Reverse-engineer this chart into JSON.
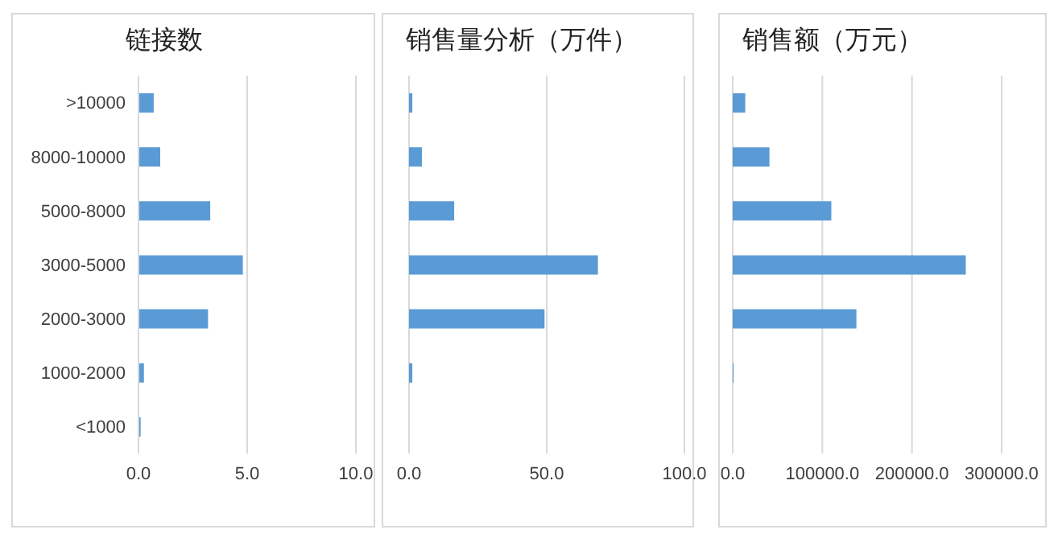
{
  "chart_data": [
    {
      "type": "bar",
      "orientation": "horizontal",
      "title": "链接数",
      "categories": [
        ">10000",
        "8000-10000",
        "5000-8000",
        "3000-5000",
        "2000-3000",
        "1000-2000",
        "<1000"
      ],
      "values": [
        0.7,
        1.0,
        3.3,
        4.8,
        3.2,
        0.25,
        0.1
      ],
      "color": "#5b9bd5",
      "xlim": [
        0,
        10
      ],
      "xticks": [
        {
          "value": 0,
          "label": "0.0"
        },
        {
          "value": 5,
          "label": "5.0"
        },
        {
          "value": 10,
          "label": "10.0"
        }
      ],
      "grid": "x"
    },
    {
      "type": "bar",
      "orientation": "horizontal",
      "title": "销售量分析（万件）",
      "categories": [
        null,
        null,
        null,
        null,
        null,
        null,
        null
      ],
      "values": [
        1.2,
        4.7,
        16.4,
        68.6,
        49.2,
        1.2,
        0
      ],
      "color": "#5b9bd5",
      "xlim": [
        0,
        100
      ],
      "xticks": [
        {
          "value": 0,
          "label": "0.0"
        },
        {
          "value": 50,
          "label": "50.0"
        },
        {
          "value": 100,
          "label": "100.0"
        }
      ],
      "grid": "x",
      "tick_labels": "x"
    },
    {
      "type": "bar",
      "orientation": "horizontal",
      "title": "销售额（万元）",
      "categories": [
        null,
        null,
        null,
        null,
        null,
        null,
        null
      ],
      "values": [
        14000,
        41000,
        110000,
        260000,
        138000,
        1000,
        0
      ],
      "color": "#5b9bd5",
      "xlim": [
        0,
        300000
      ],
      "xticks": [
        {
          "value": 0,
          "label": "0.0"
        },
        {
          "value": 100000,
          "label": "100000.0"
        },
        {
          "value": 200000,
          "label": "200000.0"
        },
        {
          "value": 300000,
          "label": "300000.0"
        }
      ],
      "grid": "x",
      "tick_labels": "x"
    }
  ]
}
